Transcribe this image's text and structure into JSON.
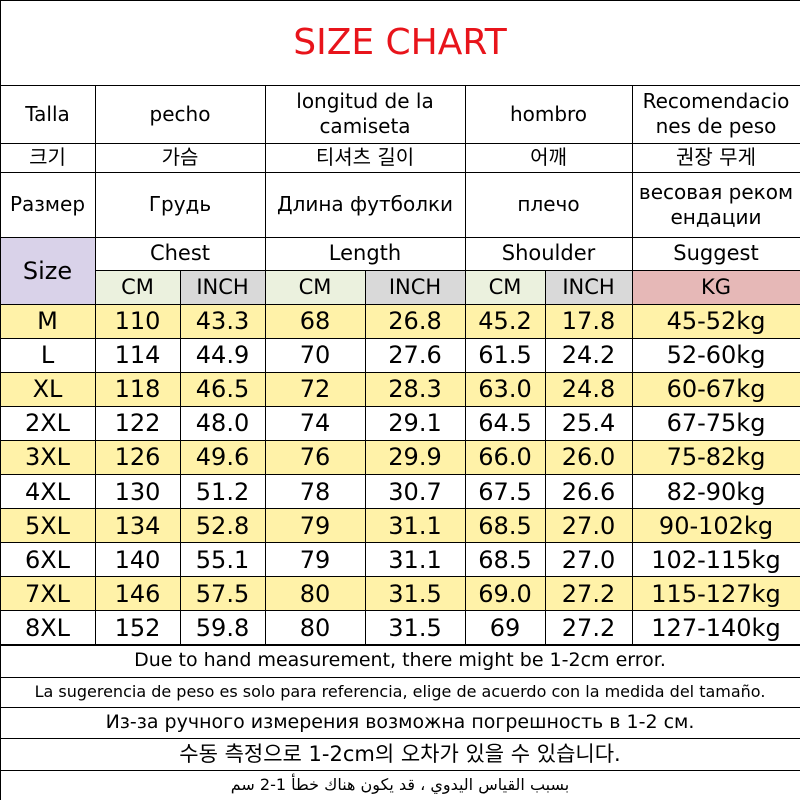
{
  "title": "SIZE CHART",
  "header": {
    "rows": [
      [
        "Talla",
        "pecho",
        "longitud de la\ncamiseta",
        "hombro",
        "Recomendacio\nnes de peso"
      ],
      [
        "크기",
        "가슴",
        "티셔츠 길이",
        "어깨",
        "권장 무게"
      ],
      [
        "Размер",
        "Грудь",
        "Длина футболки",
        "плечо",
        "весовая реком\nендации"
      ]
    ]
  },
  "size_label": "Size",
  "groups": [
    "Chest",
    "Length",
    "Shoulder",
    "Suggest"
  ],
  "units": [
    "CM",
    "INCH",
    "CM",
    "INCH",
    "CM",
    "INCH",
    "KG"
  ],
  "rows": [
    [
      "M",
      "110",
      "43.3",
      "68",
      "26.8",
      "45.2",
      "17.8",
      "45-52kg"
    ],
    [
      "L",
      "114",
      "44.9",
      "70",
      "27.6",
      "61.5",
      "24.2",
      "52-60kg"
    ],
    [
      "XL",
      "118",
      "46.5",
      "72",
      "28.3",
      "63.0",
      "24.8",
      "60-67kg"
    ],
    [
      "2XL",
      "122",
      "48.0",
      "74",
      "29.1",
      "64.5",
      "25.4",
      "67-75kg"
    ],
    [
      "3XL",
      "126",
      "49.6",
      "76",
      "29.9",
      "66.0",
      "26.0",
      "75-82kg"
    ],
    [
      "4XL",
      "130",
      "51.2",
      "78",
      "30.7",
      "67.5",
      "26.6",
      "82-90kg"
    ],
    [
      "5XL",
      "134",
      "52.8",
      "79",
      "31.1",
      "68.5",
      "27.0",
      "90-102kg"
    ],
    [
      "6XL",
      "140",
      "55.1",
      "79",
      "31.1",
      "68.5",
      "27.0",
      "102-115kg"
    ],
    [
      "7XL",
      "146",
      "57.5",
      "80",
      "31.5",
      "69.0",
      "27.2",
      "115-127kg"
    ],
    [
      "8XL",
      "152",
      "59.8",
      "80",
      "31.5",
      "69",
      "27.2",
      "127-140kg"
    ]
  ],
  "notes": [
    "Due to hand measurement, there might be 1-2cm error.",
    "La sugerencia de peso es solo para referencia, elige de acuerdo con la medida del tamaño.",
    "Из-за ручного измерения возможна погрешность в 1-2 см.",
    "수동 측정으로 1-2cm의 오차가 있을 수 있습니다.",
    "بسبب القياس اليدوي ، قد يكون هناك خطأ 1-2 سم"
  ]
}
